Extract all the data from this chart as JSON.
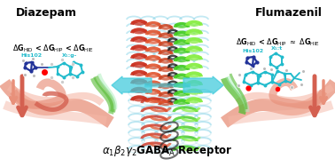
{
  "bg_color": "#ffffff",
  "left_title": "Diazepam",
  "right_title": "Flumazenil",
  "bottom_title": "$\\alpha_1\\beta_2\\gamma_2$GABA$_\\mathrm{A}$ Receptor",
  "left_formula": "$\\Delta$G$_{\\mathrm{HID}}$ < $\\Delta$G$_{\\mathrm{HIP}}$ < $\\Delta$G$_{\\mathrm{HIE}}$",
  "right_formula": "$\\Delta$G$_{\\mathrm{HID}}$ < $\\Delta$G$_{\\mathrm{HIP}}$ ≈ $\\Delta$G$_{\\mathrm{HIE}}$",
  "salmon_light": "#f5b8a8",
  "salmon_mid": "#e8907a",
  "salmon_dark": "#d46050",
  "red_helix": "#cc3322",
  "orange_helix": "#e05530",
  "green_helix": "#44cc22",
  "lime_helix": "#88ee44",
  "cyan_arrow": "#44ccdd",
  "cyan_mol": "#22bbcc",
  "dark_blue_mol": "#223399",
  "green_leaf": "#55bb33"
}
